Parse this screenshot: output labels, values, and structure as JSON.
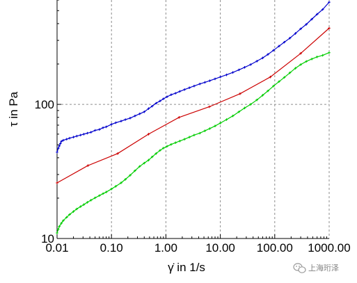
{
  "chart_data": {
    "type": "line",
    "x_scale": "log",
    "y_scale": "log",
    "xlim": [
      0.01,
      1000
    ],
    "ylim": [
      10,
      600
    ],
    "grid": true,
    "xlabel": "γ̇ in 1/s",
    "ylabel": "τ in Pa",
    "x_ticks": [
      0.01,
      0.1,
      1,
      10,
      100,
      1000
    ],
    "x_tick_labels": [
      "0.01",
      "0.10",
      "1.00",
      "10.00",
      "100.00",
      "1000.00"
    ],
    "y_ticks": [
      10,
      100
    ],
    "y_tick_labels": [
      "10",
      "100"
    ],
    "series": [
      {
        "color": "#0000cc",
        "x": [
          0.01,
          0.0105,
          0.011,
          0.0115,
          0.012,
          0.013,
          0.015,
          0.017,
          0.02,
          0.023,
          0.027,
          0.031,
          0.036,
          0.042,
          0.05,
          0.06,
          0.07,
          0.08,
          0.1,
          0.12,
          0.15,
          0.18,
          0.22,
          0.27,
          0.33,
          0.4,
          0.48,
          0.56,
          0.66,
          0.78,
          0.9,
          1.05,
          1.25,
          1.5,
          1.8,
          2.2,
          2.7,
          3.3,
          4.2,
          5.2,
          6.4,
          8,
          10,
          13,
          17,
          22,
          28,
          36,
          47,
          60,
          75,
          95,
          120,
          150,
          190,
          240,
          300,
          380,
          480,
          600,
          760,
          1000
        ],
        "y": [
          44,
          47,
          49,
          51,
          53,
          54,
          55,
          56,
          57,
          58,
          59,
          60,
          61,
          62,
          64,
          65,
          67,
          68,
          71,
          73,
          75,
          77,
          79,
          82,
          85,
          88,
          93,
          97,
          102,
          106,
          110,
          114,
          118,
          121,
          125,
          129,
          133,
          137,
          142,
          146,
          150,
          155,
          160,
          166,
          173,
          181,
          189,
          198,
          210,
          222,
          236,
          253,
          272,
          291,
          312,
          338,
          366,
          395,
          432,
          470,
          510,
          578
        ]
      },
      {
        "color": "#cc0000",
        "x": [
          0.01,
          0.037,
          0.13,
          0.48,
          1.75,
          6.3,
          23,
          83,
          300,
          1000
        ],
        "y": [
          26,
          35,
          43,
          60,
          80,
          96,
          120,
          160,
          240,
          370
        ]
      },
      {
        "color": "#00cc00",
        "x": [
          0.01,
          0.0105,
          0.011,
          0.012,
          0.013,
          0.015,
          0.017,
          0.02,
          0.023,
          0.027,
          0.031,
          0.036,
          0.042,
          0.05,
          0.06,
          0.07,
          0.08,
          0.1,
          0.12,
          0.15,
          0.18,
          0.22,
          0.27,
          0.33,
          0.4,
          0.48,
          0.56,
          0.66,
          0.78,
          0.9,
          1.05,
          1.25,
          1.5,
          1.8,
          2.2,
          2.7,
          3.3,
          4.2,
          5.2,
          6.4,
          8,
          10,
          13,
          17,
          22,
          28,
          36,
          47,
          60,
          75,
          95,
          120,
          150,
          190,
          240,
          300,
          380,
          480,
          600,
          760,
          1000
        ],
        "y": [
          11,
          11.7,
          12.3,
          13,
          13.6,
          14.4,
          15.1,
          15.9,
          16.6,
          17.3,
          17.9,
          18.6,
          19.3,
          20.1,
          20.9,
          21.6,
          22.2,
          23.4,
          24.5,
          26,
          27.6,
          29.6,
          32,
          34.5,
          36.5,
          38.4,
          40.6,
          43,
          45.4,
          47.2,
          48.7,
          50.3,
          51.8,
          53.3,
          55,
          57,
          59,
          61,
          63.5,
          66,
          69,
          72.5,
          77,
          82,
          88,
          94,
          100,
          108,
          117,
          126,
          137,
          148,
          159,
          172,
          186,
          198,
          209,
          218,
          226,
          232,
          243
        ]
      }
    ]
  },
  "watermark": {
    "icon": "wechat-icon",
    "text": "上海珩泽"
  }
}
